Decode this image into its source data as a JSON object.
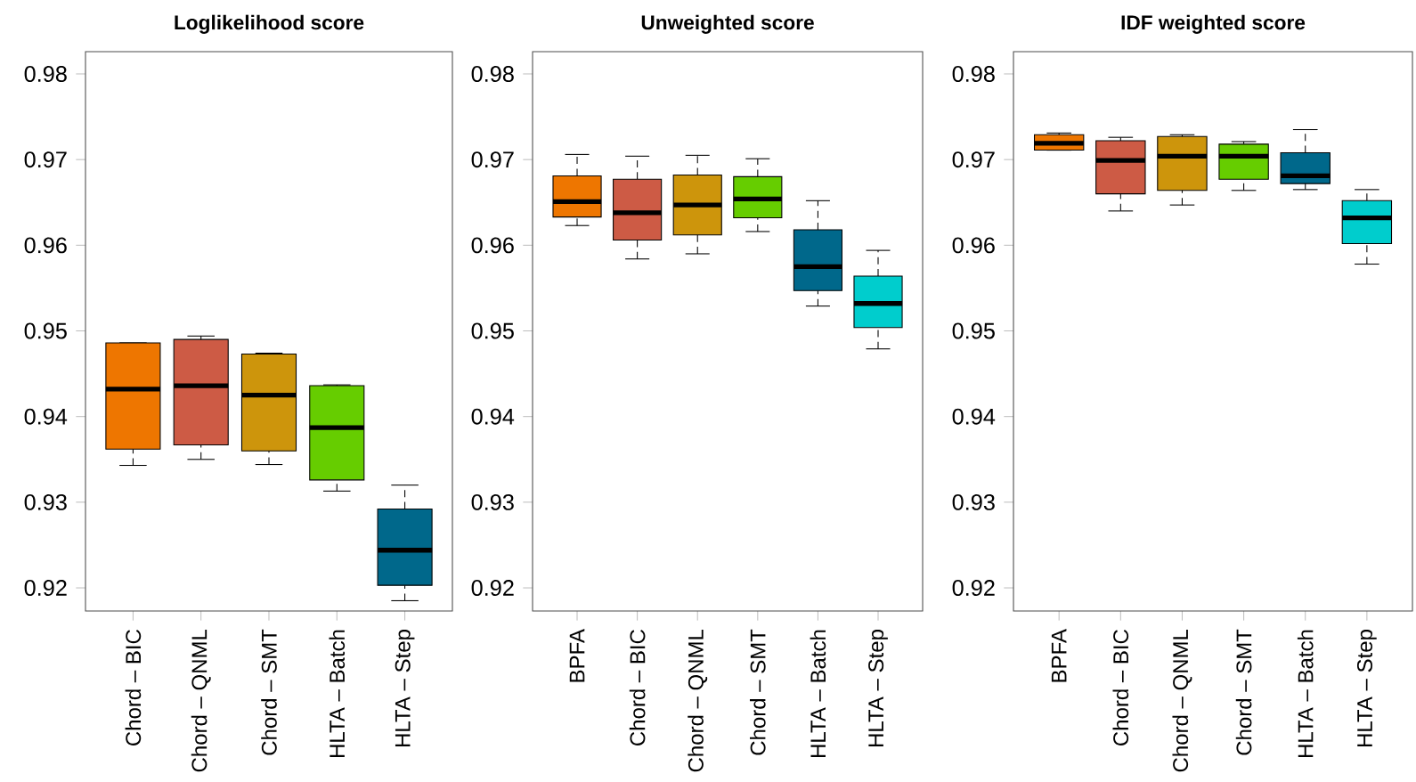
{
  "chart_data": [
    {
      "type": "box",
      "title": "Loglikelihood score",
      "categories": [
        "Chord – BIC",
        "Chord – QNML",
        "Chord – SMT",
        "HLTA – Batch",
        "HLTA – Step"
      ],
      "colors": [
        "#ee7600",
        "#cd5b45",
        "#cd950c",
        "#66cd00",
        "#00688b"
      ],
      "boxes": [
        {
          "low": 0.9343,
          "q1": 0.9362,
          "median": 0.9432,
          "q3": 0.9486,
          "high": 0.9486
        },
        {
          "low": 0.935,
          "q1": 0.9367,
          "median": 0.9436,
          "q3": 0.949,
          "high": 0.9494
        },
        {
          "low": 0.9344,
          "q1": 0.936,
          "median": 0.9425,
          "q3": 0.9473,
          "high": 0.9474
        },
        {
          "low": 0.9313,
          "q1": 0.9326,
          "median": 0.9387,
          "q3": 0.9436,
          "high": 0.9437
        },
        {
          "low": 0.9185,
          "q1": 0.9203,
          "median": 0.9244,
          "q3": 0.9292,
          "high": 0.932
        }
      ],
      "ylim": [
        0.9173,
        0.9826
      ],
      "yticks": [
        0.92,
        0.93,
        0.94,
        0.95,
        0.96,
        0.97,
        0.98
      ]
    },
    {
      "type": "box",
      "title": "Unweighted score",
      "categories": [
        "BPFA",
        "Chord – BIC",
        "Chord – QNML",
        "Chord – SMT",
        "HLTA – Batch",
        "HLTA – Step"
      ],
      "colors": [
        "#ee7600",
        "#cd5b45",
        "#cd950c",
        "#66cd00",
        "#00688b",
        "#00cdcd"
      ],
      "boxes": [
        {
          "low": 0.9623,
          "q1": 0.9633,
          "median": 0.9651,
          "q3": 0.9681,
          "high": 0.9706
        },
        {
          "low": 0.9584,
          "q1": 0.9606,
          "median": 0.9638,
          "q3": 0.9677,
          "high": 0.9704
        },
        {
          "low": 0.959,
          "q1": 0.9612,
          "median": 0.9647,
          "q3": 0.9682,
          "high": 0.9705
        },
        {
          "low": 0.9616,
          "q1": 0.9632,
          "median": 0.9654,
          "q3": 0.968,
          "high": 0.9701
        },
        {
          "low": 0.9529,
          "q1": 0.9547,
          "median": 0.9575,
          "q3": 0.9618,
          "high": 0.9652
        },
        {
          "low": 0.9479,
          "q1": 0.9504,
          "median": 0.9532,
          "q3": 0.9564,
          "high": 0.9594
        }
      ],
      "ylim": [
        0.9173,
        0.9826
      ],
      "yticks": [
        0.92,
        0.93,
        0.94,
        0.95,
        0.96,
        0.97,
        0.98
      ]
    },
    {
      "type": "box",
      "title": "IDF weighted score",
      "categories": [
        "BPFA",
        "Chord – BIC",
        "Chord – QNML",
        "Chord – SMT",
        "HLTA – Batch",
        "HLTA – Step"
      ],
      "colors": [
        "#ee7600",
        "#cd5b45",
        "#cd950c",
        "#66cd00",
        "#00688b",
        "#00cdcd"
      ],
      "boxes": [
        {
          "low": 0.9711,
          "q1": 0.9711,
          "median": 0.9719,
          "q3": 0.9729,
          "high": 0.9731
        },
        {
          "low": 0.964,
          "q1": 0.966,
          "median": 0.9699,
          "q3": 0.9722,
          "high": 0.9726
        },
        {
          "low": 0.9647,
          "q1": 0.9664,
          "median": 0.9704,
          "q3": 0.9727,
          "high": 0.9729
        },
        {
          "low": 0.9664,
          "q1": 0.9677,
          "median": 0.9704,
          "q3": 0.9718,
          "high": 0.9721
        },
        {
          "low": 0.9665,
          "q1": 0.9672,
          "median": 0.9681,
          "q3": 0.9708,
          "high": 0.9735
        },
        {
          "low": 0.9578,
          "q1": 0.9602,
          "median": 0.9632,
          "q3": 0.9652,
          "high": 0.9665
        }
      ],
      "ylim": [
        0.9173,
        0.9826
      ],
      "yticks": [
        0.92,
        0.93,
        0.94,
        0.95,
        0.96,
        0.97,
        0.98
      ]
    }
  ]
}
